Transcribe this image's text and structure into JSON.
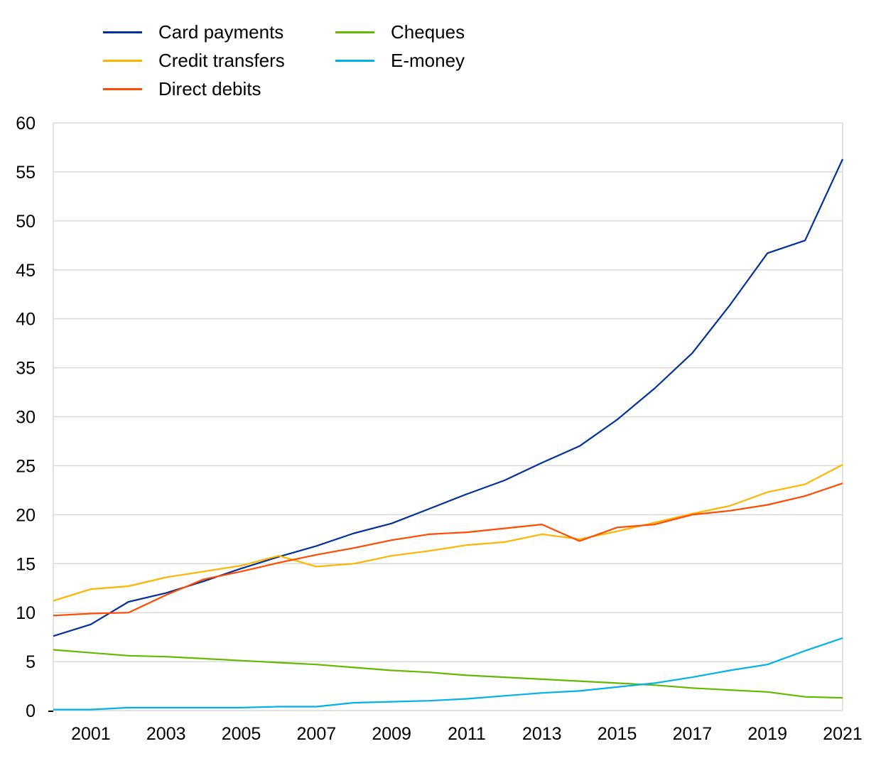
{
  "chart_data": {
    "type": "line",
    "title": "",
    "xlabel": "",
    "ylabel": "",
    "x": [
      2000,
      2001,
      2002,
      2003,
      2004,
      2005,
      2006,
      2007,
      2008,
      2009,
      2010,
      2011,
      2012,
      2013,
      2014,
      2015,
      2016,
      2017,
      2018,
      2019,
      2020,
      2021
    ],
    "xlim": [
      2000,
      2021
    ],
    "ylim": [
      0,
      60
    ],
    "x_tick_labels": [
      "2001",
      "2003",
      "2005",
      "2007",
      "2009",
      "2011",
      "2013",
      "2015",
      "2017",
      "2019",
      "2021"
    ],
    "x_ticks": [
      2001,
      2003,
      2005,
      2007,
      2009,
      2011,
      2013,
      2015,
      2017,
      2019,
      2021
    ],
    "y_tick_labels": [
      "0",
      "5",
      "10",
      "15",
      "20",
      "25",
      "30",
      "35",
      "40",
      "45",
      "50",
      "55",
      "60"
    ],
    "y_ticks": [
      0,
      5,
      10,
      15,
      20,
      25,
      30,
      35,
      40,
      45,
      50,
      55,
      60
    ],
    "grid": true,
    "legend_position": "top-left",
    "series": [
      {
        "name": "Card payments",
        "color": "#003299",
        "values": [
          7.6,
          8.8,
          11.1,
          12.0,
          13.2,
          14.5,
          15.7,
          16.8,
          18.1,
          19.1,
          20.6,
          22.1,
          23.5,
          25.3,
          27.0,
          29.7,
          32.9,
          36.5,
          41.4,
          46.7,
          48.0,
          56.3
        ]
      },
      {
        "name": "Credit transfers",
        "color": "#FFB400",
        "values": [
          11.2,
          12.4,
          12.7,
          13.6,
          14.2,
          14.8,
          15.8,
          14.7,
          15.0,
          15.8,
          16.3,
          16.9,
          17.2,
          18.0,
          17.5,
          18.3,
          19.2,
          20.1,
          20.9,
          22.3,
          23.1,
          25.1
        ]
      },
      {
        "name": "Direct debits",
        "color": "#FF4B00",
        "values": [
          9.7,
          9.9,
          10.0,
          11.8,
          13.4,
          14.2,
          15.1,
          15.9,
          16.6,
          17.4,
          18.0,
          18.2,
          18.6,
          19.0,
          17.3,
          18.7,
          19.0,
          20.0,
          20.4,
          21.0,
          21.9,
          23.2
        ]
      },
      {
        "name": "Cheques",
        "color": "#65B800",
        "values": [
          6.2,
          5.9,
          5.6,
          5.5,
          5.3,
          5.1,
          4.9,
          4.7,
          4.4,
          4.1,
          3.9,
          3.6,
          3.4,
          3.2,
          3.0,
          2.8,
          2.6,
          2.3,
          2.1,
          1.9,
          1.4,
          1.3
        ]
      },
      {
        "name": "E-money",
        "color": "#00B1EA",
        "values": [
          0.1,
          0.1,
          0.3,
          0.3,
          0.3,
          0.3,
          0.4,
          0.4,
          0.8,
          0.9,
          1.0,
          1.2,
          1.5,
          1.8,
          2.0,
          2.4,
          2.8,
          3.4,
          4.1,
          4.7,
          6.1,
          7.4
        ]
      }
    ]
  },
  "legend": {
    "items": [
      {
        "label": "Card payments",
        "color": "#003299"
      },
      {
        "label": "Credit transfers",
        "color": "#FFB400"
      },
      {
        "label": "Direct debits",
        "color": "#FF4B00"
      },
      {
        "label": "Cheques",
        "color": "#65B800"
      },
      {
        "label": "E-money",
        "color": "#00B1EA"
      }
    ]
  }
}
